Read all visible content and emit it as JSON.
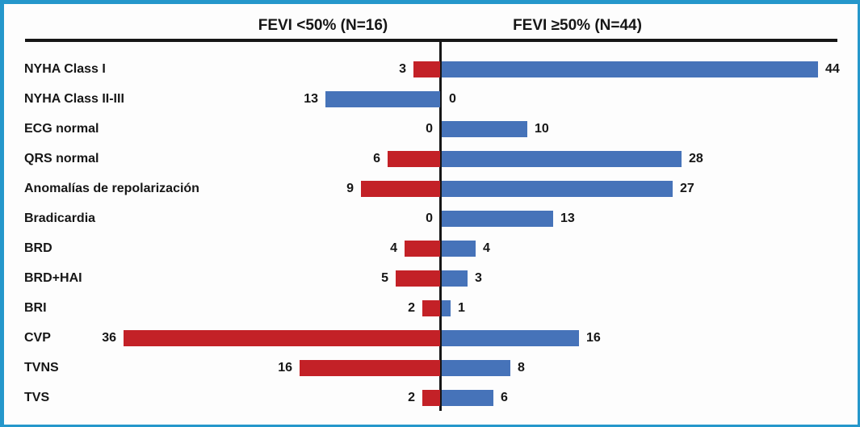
{
  "frame": {
    "border_color": "#2597cb",
    "axis_line_color": "#161616"
  },
  "chart_data": {
    "type": "bar",
    "variant": "horizontal-diverging-tornado",
    "title": "",
    "axis_header_left": "FEVI <50% (N=16)",
    "axis_header_right": "FEVI ≥50% (N=44)",
    "categories": [
      "NYHA Class I",
      "NYHA Class II-III",
      "ECG normal",
      "QRS normal",
      "Anomalías de repolarización",
      "Bradicardia",
      "BRD",
      "BRD+HAI",
      "BRI",
      "CVP",
      "TVNS",
      "TVS"
    ],
    "series": [
      {
        "name": "FEVI <50% (N=16)",
        "side": "left",
        "color": "#c32127",
        "values": [
          3,
          13,
          0,
          6,
          9,
          0,
          4,
          5,
          2,
          36,
          16,
          2
        ]
      },
      {
        "name": "FEVI ≥50% (N=44)",
        "side": "right",
        "color": "#4673b9",
        "values": [
          44,
          0,
          10,
          28,
          27,
          13,
          4,
          3,
          1,
          16,
          8,
          6
        ]
      }
    ],
    "left_bar_color_overrides": {
      "1": "#4673b9"
    },
    "xlim_left": [
      0,
      36
    ],
    "xlim_right": [
      0,
      44
    ],
    "data_labels": "on",
    "grid": "off",
    "legend_position": "top-headers"
  }
}
